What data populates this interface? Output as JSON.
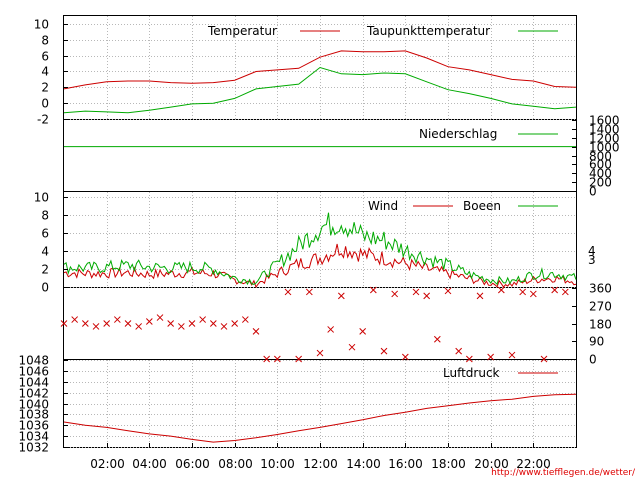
{
  "credit": "http://www.tiefflegen.de/wetter/",
  "colors": {
    "red": "#cc0000",
    "green": "#00aa00"
  },
  "chart_data": [
    {
      "type": "line",
      "id": "temp",
      "ylim": [
        -2,
        11
      ],
      "yticks": [
        -2,
        0,
        2,
        4,
        6,
        8,
        10
      ],
      "x": [
        0,
        1,
        2,
        3,
        4,
        5,
        6,
        7,
        8,
        9,
        10,
        11,
        12,
        13,
        14,
        15,
        16,
        17,
        18,
        19,
        20,
        21,
        22,
        23,
        24
      ],
      "series": [
        {
          "name": "Temperatur",
          "color": "#cc0000",
          "values": [
            1.8,
            2.3,
            2.7,
            2.8,
            2.8,
            2.6,
            2.5,
            2.6,
            2.9,
            4.0,
            4.2,
            4.4,
            5.8,
            6.6,
            6.5,
            6.5,
            6.6,
            5.7,
            4.6,
            4.2,
            3.6,
            3.0,
            2.8,
            2.1,
            2.0
          ]
        },
        {
          "name": "Taupunkttemperatur",
          "color": "#00aa00",
          "values": [
            -1.2,
            -1.0,
            -1.1,
            -1.2,
            -0.9,
            -0.5,
            -0.1,
            0.0,
            0.6,
            1.8,
            2.1,
            2.4,
            4.5,
            3.7,
            3.6,
            3.8,
            3.7,
            2.7,
            1.7,
            1.2,
            0.6,
            -0.1,
            -0.4,
            -0.7,
            -0.5
          ]
        }
      ]
    },
    {
      "type": "line",
      "id": "precip",
      "ylim": [
        0,
        1600
      ],
      "yticks": [
        0,
        200,
        400,
        600,
        800,
        1000,
        1200,
        1400,
        1600
      ],
      "x": [
        0,
        24
      ],
      "series": [
        {
          "name": "Niederschlag",
          "color": "#00aa00",
          "values": [
            1000,
            1000
          ]
        }
      ]
    },
    {
      "type": "line",
      "id": "wind",
      "ylim": [
        0,
        10.5
      ],
      "yticks": [
        0,
        2,
        4,
        6,
        8,
        10
      ],
      "right_ticks": [
        3,
        4
      ],
      "x": [
        0,
        1,
        2,
        3,
        4,
        5,
        6,
        7,
        8,
        9,
        10,
        11,
        12,
        13,
        14,
        15,
        16,
        17,
        18,
        19,
        20,
        21,
        22,
        23,
        24
      ],
      "series": [
        {
          "name": "Wind",
          "color": "#cc0000",
          "values": [
            1.6,
            1.5,
            1.5,
            1.6,
            1.4,
            1.5,
            1.6,
            1.5,
            0.8,
            0.3,
            1.5,
            2.6,
            3.2,
            4.4,
            3.6,
            3.2,
            2.6,
            2.0,
            1.5,
            0.9,
            0.4,
            0.3,
            0.8,
            1.0,
            0.6
          ]
        },
        {
          "name": "Boeen",
          "color": "#00aa00",
          "values": [
            2.2,
            2.1,
            2.2,
            2.4,
            2.2,
            2.1,
            2.2,
            2.0,
            1.0,
            0.6,
            2.5,
            4.6,
            6.6,
            7.3,
            5.6,
            5.2,
            4.1,
            3.2,
            2.4,
            1.4,
            0.8,
            0.6,
            1.4,
            1.5,
            1.0
          ]
        }
      ]
    },
    {
      "type": "scatter",
      "id": "direction",
      "ylim": [
        0,
        360
      ],
      "yticks": [
        0,
        90,
        180,
        270,
        360
      ],
      "x": [
        0,
        0.5,
        1,
        1.5,
        2,
        2.5,
        3,
        3.5,
        4,
        4.5,
        5,
        5.5,
        6,
        6.5,
        7,
        7.5,
        8,
        8.5,
        9,
        9.5,
        10,
        10.5,
        11,
        11.5,
        12,
        12.5,
        13,
        13.5,
        14,
        14.5,
        15,
        15.5,
        16,
        16.5,
        17,
        17.5,
        18,
        18.5,
        19,
        19.5,
        20,
        20.5,
        21,
        21.5,
        22,
        22.5,
        23,
        23.5
      ],
      "values": [
        180,
        200,
        180,
        165,
        180,
        200,
        180,
        165,
        190,
        210,
        180,
        165,
        180,
        200,
        180,
        165,
        180,
        200,
        140,
        0,
        0,
        340,
        0,
        340,
        30,
        150,
        320,
        60,
        140,
        350,
        40,
        330,
        10,
        340,
        320,
        100,
        345,
        40,
        0,
        320,
        10,
        350,
        20,
        340,
        330,
        0,
        350,
        340
      ]
    },
    {
      "type": "line",
      "id": "pressure",
      "ylim": [
        1032,
        1048
      ],
      "yticks": [
        1032,
        1034,
        1036,
        1038,
        1040,
        1042,
        1044,
        1046,
        1048
      ],
      "x": [
        0,
        1,
        2,
        3,
        4,
        5,
        6,
        7,
        8,
        9,
        10,
        11,
        12,
        13,
        14,
        15,
        16,
        17,
        18,
        19,
        20,
        21,
        22,
        23,
        24
      ],
      "series": [
        {
          "name": "Luftdruck",
          "color": "#cc0000",
          "values": [
            1036.6,
            1036.0,
            1035.6,
            1035.0,
            1034.4,
            1034.0,
            1033.4,
            1032.9,
            1033.2,
            1033.7,
            1034.3,
            1035.0,
            1035.6,
            1036.3,
            1037.0,
            1037.8,
            1038.4,
            1039.1,
            1039.6,
            1040.1,
            1040.5,
            1040.8,
            1041.3,
            1041.6,
            1041.7
          ]
        }
      ]
    }
  ],
  "x_axis": {
    "tick_labels": [
      "02:00",
      "04:00",
      "06:00",
      "08:00",
      "10:00",
      "12:00",
      "14:00",
      "16:00",
      "18:00",
      "20:00",
      "22:00"
    ]
  }
}
